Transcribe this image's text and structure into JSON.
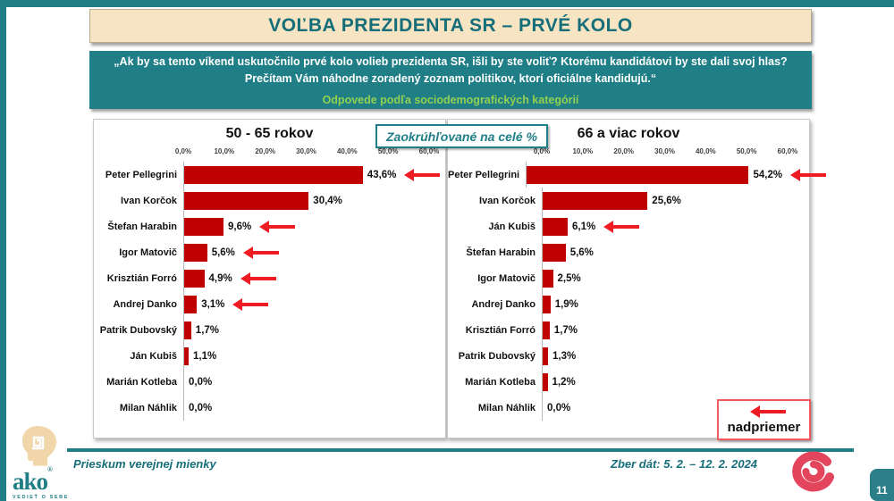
{
  "header": {
    "title": "VOĽBA PREZIDENTA SR – PRVÉ KOLO"
  },
  "question": {
    "line1": "„Ak by sa tento víkend uskutočnilo prvé kolo volieb prezidenta SR, išli by ste voliť? Ktorému kandidátovi by ste dali svoj hlas?",
    "line2": "Prečítam Vám náhodne zoradený zoznam politikov, ktorí oficiálne kandidujú.“",
    "subtitle": "Odpovede podľa sociodemografických kategórií"
  },
  "note": "Zaokrúhľované na celé %",
  "legend": {
    "label": "nadpriemer",
    "meaning": "above-average (red arrow)"
  },
  "footer": {
    "left_text": "Prieskum verejnej mienky",
    "right_text": "Zber dát: 5. 2. – 12. 2. 2024",
    "logo_word": "ako",
    "logo_sub": "VEDIEŤ O SEBE",
    "page_number": "11"
  },
  "colors": {
    "teal": "#1f7e86",
    "cream": "#f6e4c3",
    "bar_red": "#c00000",
    "arrow_red": "#ef1c24",
    "green": "#92d050",
    "legend_border": "#ef5b5e"
  },
  "chart_data": [
    {
      "type": "bar",
      "orientation": "horizontal",
      "title": "50 - 65 rokov",
      "xlim": [
        0,
        60
      ],
      "x_ticks": [
        "0,0%",
        "10,0%",
        "20,0%",
        "30,0%",
        "40,0%",
        "50,0%",
        "60,0%"
      ],
      "grid": false,
      "categories": [
        "Peter Pellegrini",
        "Ivan Korčok",
        "Štefan Harabin",
        "Igor Matovič",
        "Krisztián Forró",
        "Andrej Danko",
        "Patrik Dubovský",
        "Ján Kubiš",
        "Marián Kotleba",
        "Milan Náhlik"
      ],
      "values": [
        43.6,
        30.4,
        9.6,
        5.6,
        4.9,
        3.1,
        1.7,
        1.1,
        0.0,
        0.0
      ],
      "value_labels": [
        "43,6%",
        "30,4%",
        "9,6%",
        "5,6%",
        "4,9%",
        "3,1%",
        "1,7%",
        "1,1%",
        "0,0%",
        "0,0%"
      ],
      "above_average_arrow": [
        true,
        false,
        true,
        true,
        true,
        true,
        false,
        false,
        false,
        false
      ]
    },
    {
      "type": "bar",
      "orientation": "horizontal",
      "title": "66 a viac rokov",
      "xlim": [
        0,
        60
      ],
      "x_ticks": [
        "0,0%",
        "10,0%",
        "20,0%",
        "30,0%",
        "40,0%",
        "50,0%",
        "60,0%"
      ],
      "grid": false,
      "categories": [
        "Peter Pellegrini",
        "Ivan Korčok",
        "Ján Kubiš",
        "Štefan Harabin",
        "Igor Matovič",
        "Andrej Danko",
        "Krisztián Forró",
        "Patrik Dubovský",
        "Marián Kotleba",
        "Milan Náhlik"
      ],
      "values": [
        54.2,
        25.6,
        6.1,
        5.6,
        2.5,
        1.9,
        1.7,
        1.3,
        1.2,
        0.0
      ],
      "value_labels": [
        "54,2%",
        "25,6%",
        "6,1%",
        "5,6%",
        "2,5%",
        "1,9%",
        "1,7%",
        "1,3%",
        "1,2%",
        "0,0%"
      ],
      "above_average_arrow": [
        true,
        false,
        true,
        false,
        false,
        false,
        false,
        false,
        false,
        false
      ]
    }
  ]
}
